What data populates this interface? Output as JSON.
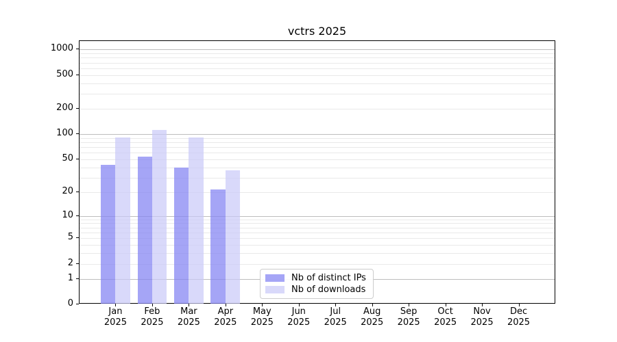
{
  "title": "vctrs 2025",
  "chart_data": {
    "type": "bar",
    "title": "vctrs 2025",
    "scale": "log1p",
    "xlabel": "",
    "ylabel": "",
    "categories": [
      "Jan",
      "Feb",
      "Mar",
      "Apr",
      "May",
      "Jun",
      "Jul",
      "Aug",
      "Sep",
      "Oct",
      "Nov",
      "Dec"
    ],
    "year": "2025",
    "series": [
      {
        "name": "Nb of distinct IPs",
        "color": "rgba(130,130,242,0.72)",
        "values": [
          42,
          53,
          39,
          21,
          null,
          null,
          null,
          null,
          null,
          null,
          null,
          null
        ]
      },
      {
        "name": "Nb of downloads",
        "color": "rgba(201,201,248,0.70)",
        "values": [
          89,
          110,
          90,
          36,
          null,
          null,
          null,
          null,
          null,
          null,
          null,
          null
        ]
      }
    ],
    "y_ticks": [
      0,
      1,
      2,
      5,
      10,
      20,
      50,
      100,
      200,
      500,
      1000
    ],
    "y_major_gridlines": [
      1,
      10,
      100,
      1000
    ],
    "ylim": [
      0,
      1258
    ],
    "grid": true,
    "legend_position": "lower center-left",
    "colors": {
      "axis": "#000000",
      "major_grid": "#bdbdbd",
      "minor_grid": "#e9e9e9"
    }
  }
}
